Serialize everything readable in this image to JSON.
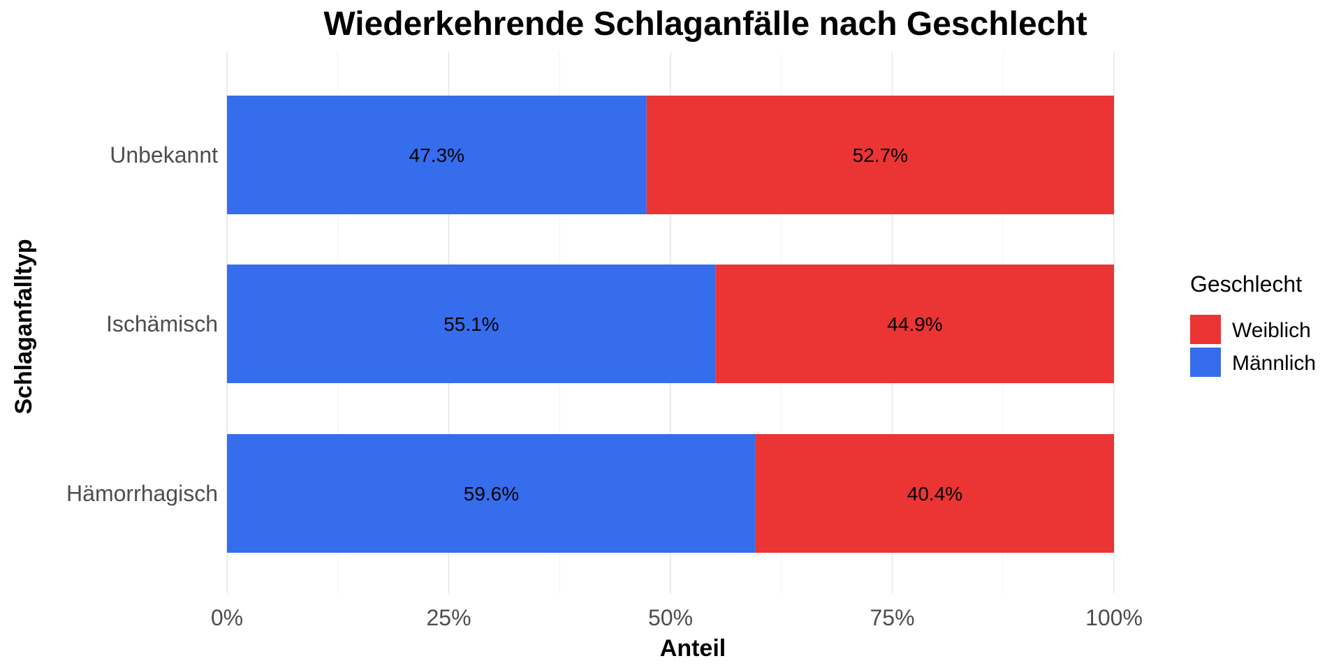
{
  "chart_data": {
    "type": "bar",
    "orientation": "horizontal",
    "stacked": true,
    "percent": true,
    "title": "Wiederkehrende Schlaganfälle nach Geschlecht",
    "xlabel": "Anteil",
    "ylabel": "Schlaganfalltyp",
    "categories": [
      "Unbekannt",
      "Ischämisch",
      "Hämorrhagisch"
    ],
    "series": [
      {
        "name": "Männlich",
        "color": "#356ded",
        "values": [
          47.3,
          55.1,
          59.6
        ],
        "labels": [
          "47.3%",
          "55.1%",
          "59.6%"
        ]
      },
      {
        "name": "Weiblich",
        "color": "#eb3434",
        "values": [
          52.7,
          44.9,
          40.4
        ],
        "labels": [
          "52.7%",
          "44.9%",
          "40.4%"
        ]
      }
    ],
    "xlim": [
      0,
      100
    ],
    "x_ticks": [
      0,
      25,
      50,
      75,
      100
    ],
    "x_tick_labels": [
      "0%",
      "25%",
      "50%",
      "75%",
      "100%"
    ],
    "grid": true,
    "legend": {
      "title": "Geschlecht",
      "position": "right",
      "order": [
        "Weiblich",
        "Männlich"
      ]
    }
  }
}
